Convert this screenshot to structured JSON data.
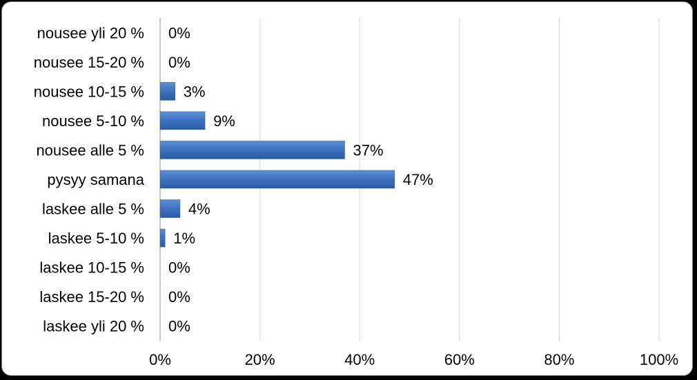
{
  "chart_data": {
    "type": "bar",
    "orientation": "horizontal",
    "categories": [
      "nousee yli 20 %",
      "nousee 15-20 %",
      "nousee 10-15 %",
      "nousee 5-10 %",
      "nousee alle 5 %",
      "pysyy samana",
      "laskee alle 5 %",
      "laskee 5-10 %",
      "laskee 10-15 %",
      "laskee 15-20 %",
      "laskee yli 20 %"
    ],
    "values": [
      0,
      0,
      3,
      9,
      37,
      47,
      4,
      1,
      0,
      0,
      0
    ],
    "value_labels": [
      "0%",
      "0%",
      "3%",
      "9%",
      "37%",
      "47%",
      "4%",
      "1%",
      "0%",
      "0%",
      "0%"
    ],
    "x_ticks": [
      "0%",
      "20%",
      "40%",
      "60%",
      "80%",
      "100%"
    ],
    "xlim": [
      0,
      100
    ],
    "grid": "vertical",
    "legend": "none",
    "bar_color": "#3a6fbf"
  }
}
